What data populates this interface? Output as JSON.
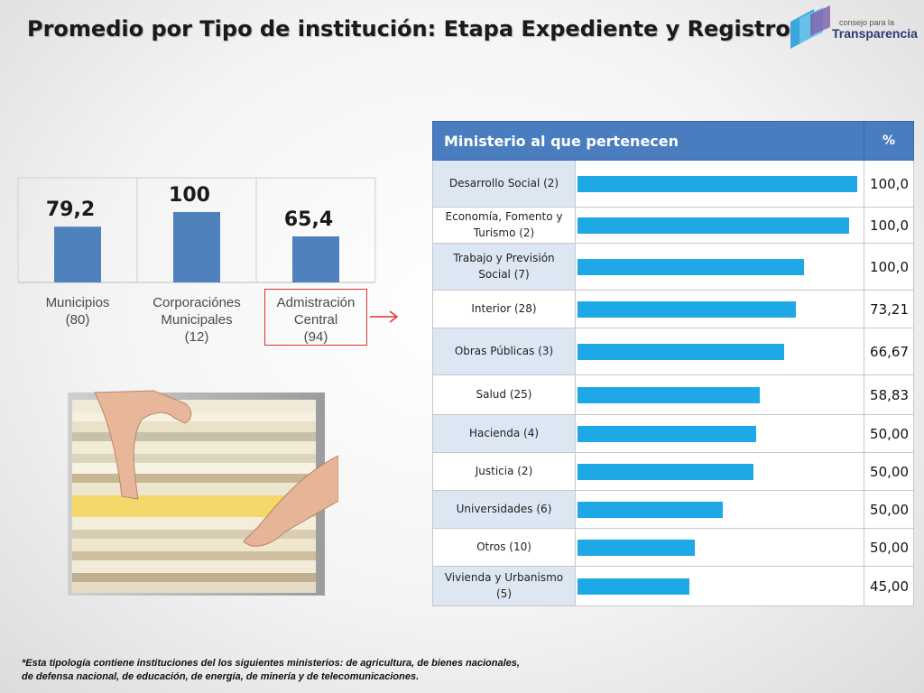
{
  "title": "Promedio por Tipo de institución: Etapa Expediente y Registro",
  "logo": {
    "line1": "consejo para la",
    "line2": "Transparencia"
  },
  "left_chart_labels": [
    {
      "line1": "Municipios",
      "line2": "",
      "count": "(80)"
    },
    {
      "line1": "Corporaciónes",
      "line2": "Municipales",
      "count": "(12)"
    },
    {
      "line1": "Admistración",
      "line2": "Central",
      "count": "(94)"
    }
  ],
  "table": {
    "header_name": "Ministerio al que pertenecen",
    "header_pct": "%"
  },
  "footnote": {
    "line1": "*Esta tipología contiene instituciones del los siguientes ministerios: de agricultura, de bienes nacionales,",
    "line2": "de defensa nacional, de educación, de energía, de minería y de telecomunicaciones."
  },
  "colors": {
    "column_bar": "#4f81bd",
    "table_bar": "#1fa8e6",
    "header_bg": "#4a7cc0",
    "highlight": "#e03030"
  },
  "chart_data": [
    {
      "type": "bar",
      "categories": [
        "Municipios (80)",
        "Corporaciónes Municipales (12)",
        "Admistración Central (94)"
      ],
      "values": [
        79.2,
        100,
        65.4
      ],
      "value_labels": [
        "79,2",
        "100",
        "65,4"
      ],
      "ylim": [
        0,
        100
      ]
    },
    {
      "type": "bar",
      "orientation": "horizontal",
      "categories": [
        "Desarrollo Social (2)",
        "Economía, Fomento y Turismo (2)",
        "Trabajo y Previsión Social (7)",
        "Interior (28)",
        "Obras Públicas (3)",
        "Salud (25)",
        "Hacienda (4)",
        "Justicia (2)",
        "Universidades (6)",
        "Otros (10)",
        "Vivienda y Urbanismo (5)"
      ],
      "values": [
        100.0,
        100.0,
        100.0,
        73.21,
        66.67,
        58.83,
        50.0,
        50.0,
        50.0,
        50.0,
        45.0
      ],
      "value_labels": [
        "100,0",
        "100,0",
        "100,0",
        "73,21",
        "66,67",
        "58,83",
        "50,00",
        "50,00",
        "50,00",
        "50,00",
        "45,00"
      ],
      "bar_levels": [
        1.0,
        0.97,
        0.81,
        0.78,
        0.74,
        0.65,
        0.64,
        0.63,
        0.52,
        0.42,
        0.4
      ]
    }
  ]
}
